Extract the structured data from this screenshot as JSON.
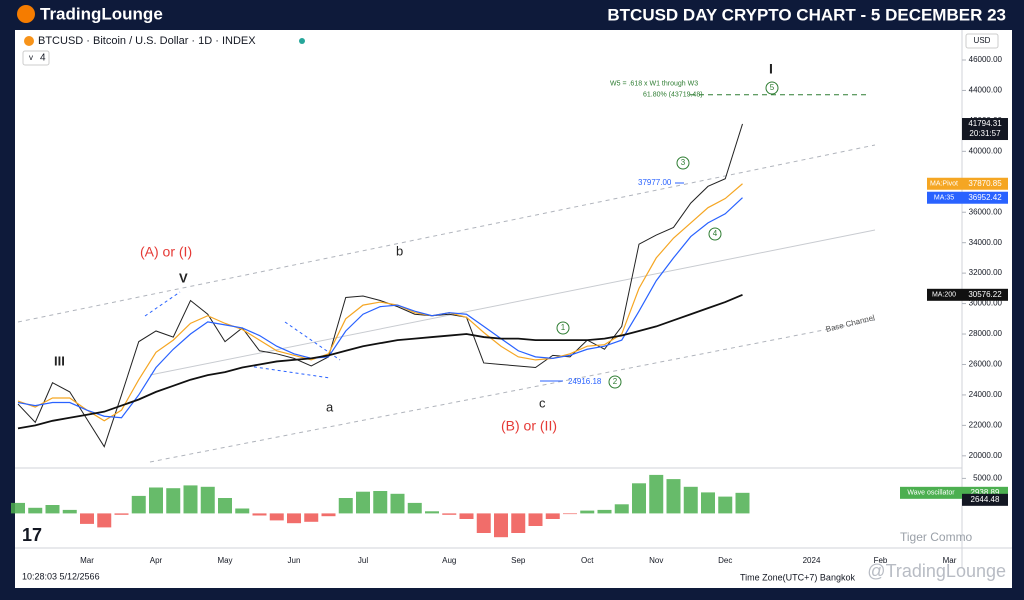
{
  "header": {
    "logo": "TradingLounge",
    "title": "BTCUSD DAY CRYPTO CHART - 5 DECEMBER 23"
  },
  "toolbar": {
    "symbol": "BTCUSD · Bitcoin / U.S. Dollar · 1D · INDEX",
    "indicator_count": "4",
    "currency": "USD"
  },
  "chart_data": {
    "type": "line",
    "categories": [
      null,
      null,
      null,
      null,
      "Mar",
      null,
      null,
      null,
      "Apr",
      null,
      null,
      null,
      "May",
      null,
      null,
      null,
      "Jun",
      null,
      null,
      null,
      "Jul",
      null,
      null,
      null,
      null,
      "Aug",
      null,
      null,
      null,
      "Sep",
      null,
      null,
      null,
      "Oct",
      null,
      null,
      null,
      "Nov",
      null,
      null,
      null,
      "Dec",
      null,
      null,
      null,
      null,
      "2024",
      null,
      null,
      null,
      "Feb",
      null,
      null,
      null,
      "Mar"
    ],
    "series": [
      {
        "name": "BTCUSD",
        "color": "#222222",
        "values": [
          23400,
          22200,
          24800,
          24200,
          22400,
          20600,
          24000,
          27500,
          28200,
          27800,
          30200,
          29300,
          27500,
          28400,
          26900,
          26700,
          26400,
          25900,
          26500,
          30400,
          30500,
          30200,
          29800,
          29300,
          29200,
          29300,
          29100,
          26100,
          26000,
          25900,
          25800,
          26600,
          26500,
          27600,
          27000,
          28500,
          33900,
          34500,
          35000,
          36600,
          37700,
          38200,
          41800,
          null,
          null,
          null,
          null,
          null,
          null,
          null,
          null,
          null,
          null,
          null,
          null
        ]
      },
      {
        "name": "MA:Pivot",
        "color": "#f5a623",
        "values": [
          23600,
          23200,
          23800,
          23800,
          23000,
          22300,
          23000,
          25000,
          26800,
          27600,
          28700,
          29200,
          28700,
          28300,
          27600,
          26900,
          26600,
          26300,
          26700,
          29000,
          29900,
          30100,
          29900,
          29400,
          29200,
          29400,
          29100,
          28100,
          27200,
          26500,
          26300,
          26400,
          26700,
          27200,
          27300,
          28000,
          31000,
          33000,
          34300,
          35300,
          36300,
          36900,
          37870.85,
          null,
          null,
          null,
          null,
          null,
          null,
          null,
          null,
          null,
          null,
          null,
          null
        ]
      },
      {
        "name": "MA:35",
        "color": "#2962ff",
        "values": [
          23500,
          23300,
          23500,
          23500,
          23000,
          22600,
          22500,
          24000,
          25800,
          27000,
          28000,
          28800,
          28600,
          28400,
          27900,
          27200,
          26700,
          26400,
          26500,
          28200,
          29300,
          29800,
          29900,
          29500,
          29200,
          29400,
          29300,
          28500,
          27700,
          26900,
          26500,
          26400,
          26600,
          27000,
          27200,
          27600,
          29500,
          31500,
          33000,
          34400,
          35300,
          35900,
          36952.42,
          null,
          null,
          null,
          null,
          null,
          null,
          null,
          null,
          null,
          null,
          null,
          null
        ]
      },
      {
        "name": "MA:200",
        "color": "#111111",
        "values": [
          21800,
          22000,
          22300,
          22500,
          22700,
          22900,
          23300,
          23700,
          24200,
          24600,
          25000,
          25300,
          25500,
          25800,
          26000,
          26200,
          26300,
          26400,
          26600,
          26900,
          27200,
          27400,
          27600,
          27700,
          27800,
          27900,
          28000,
          27800,
          27700,
          27700,
          27600,
          27600,
          27600,
          27600,
          27700,
          27900,
          28200,
          28500,
          28900,
          29300,
          29700,
          30100,
          30576.22,
          null,
          null,
          null,
          null,
          null,
          null,
          null,
          null,
          null,
          null,
          null,
          null
        ]
      }
    ],
    "ylim": [
      19200,
      47970
    ],
    "yticks": [
      {
        "value": 20000,
        "label": "20000.00"
      },
      {
        "value": 22000,
        "label": "22000.00"
      },
      {
        "value": 24000,
        "label": "24000.00"
      },
      {
        "value": 26000,
        "label": "26000.00"
      },
      {
        "value": 28000,
        "label": "28000.00"
      },
      {
        "value": 30000,
        "label": "30000.00"
      },
      {
        "value": 32000,
        "label": "32000.00"
      },
      {
        "value": 34000,
        "label": "34000.00"
      },
      {
        "value": 36000,
        "label": "36000.00"
      },
      {
        "value": 38000,
        "label": "38000.00"
      },
      {
        "value": 40000,
        "label": "40000.00"
      },
      {
        "value": 42000,
        "label": "42000.00"
      },
      {
        "value": 44000,
        "label": "44000.00"
      },
      {
        "value": 46000,
        "label": "46000.00"
      }
    ],
    "last_price": {
      "value": 41794.31,
      "countdown": "20:31:57"
    },
    "price_tags": [
      {
        "label": "MA:Pivot",
        "value": 37870.85,
        "color": "#f5a623"
      },
      {
        "label": "MA:35",
        "value": 36952.42,
        "color": "#2962ff"
      },
      {
        "label": "MA:200",
        "value": 30576.22,
        "color": "#111111"
      }
    ],
    "fib_level": {
      "value": 43719.48,
      "text": "W5 = .618 x W1 through W3",
      "label": "61.80% (43719.48)"
    }
  },
  "oscillator": {
    "name": "Wave oscillator",
    "positive_color": "#4caf50",
    "negative_color": "#ef5350",
    "values": [
      1500,
      800,
      1200,
      500,
      -1500,
      -2000,
      -200,
      2500,
      3700,
      3600,
      4000,
      3800,
      2200,
      700,
      -300,
      -1000,
      -1400,
      -1200,
      -400,
      2200,
      3100,
      3200,
      2800,
      1500,
      300,
      -200,
      -800,
      -2800,
      -3400,
      -2800,
      -1800,
      -800,
      -100,
      400,
      500,
      1300,
      4300,
      5500,
      4900,
      3800,
      3000,
      2400,
      2938.89
    ],
    "ylim": [
      -3800,
      6200
    ],
    "yticks": [
      {
        "value": 5000,
        "label": "5000.00"
      }
    ],
    "signal": 2644.48
  },
  "annotations": {
    "wave_III": "III",
    "wave_A": "(A) or (I)",
    "wave_V": "V",
    "wave_b": "b",
    "wave_a": "a",
    "wave_c": "c",
    "wave_B": "(B) or (II)",
    "wave_I": "I",
    "high_37977": "37977.00",
    "low_24916": "24916.18",
    "base_channel": "Base Channel",
    "circle_1": "1",
    "circle_2": "2",
    "circle_3": "3",
    "circle_4": "4",
    "circle_5": "5"
  },
  "footer": {
    "time": "10:28:03 5/12/2566",
    "timezone": "Time Zone(UTC+7) Bangkok",
    "watermark": "@TradingLounge",
    "watermark2": "Tiger Commo"
  }
}
